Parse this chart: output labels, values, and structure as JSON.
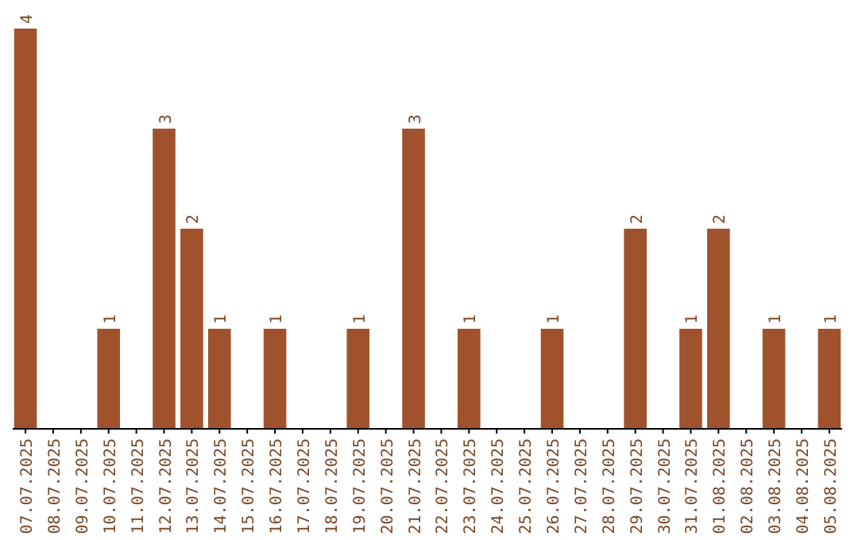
{
  "chart_data": {
    "type": "bar",
    "categories": [
      "07.07.2025",
      "08.07.2025",
      "09.07.2025",
      "10.07.2025",
      "11.07.2025",
      "12.07.2025",
      "13.07.2025",
      "14.07.2025",
      "15.07.2025",
      "16.07.2025",
      "17.07.2025",
      "18.07.2025",
      "19.07.2025",
      "20.07.2025",
      "21.07.2025",
      "22.07.2025",
      "23.07.2025",
      "24.07.2025",
      "25.07.2025",
      "26.07.2025",
      "27.07.2025",
      "28.07.2025",
      "29.07.2025",
      "30.07.2025",
      "31.07.2025",
      "01.08.2025",
      "02.08.2025",
      "03.08.2025",
      "04.08.2025",
      "05.08.2025"
    ],
    "values": [
      4,
      0,
      0,
      1,
      0,
      3,
      2,
      1,
      0,
      1,
      0,
      0,
      1,
      0,
      3,
      0,
      1,
      0,
      0,
      1,
      0,
      0,
      2,
      0,
      1,
      2,
      0,
      1,
      0,
      1
    ],
    "value_labels": [
      "4",
      null,
      null,
      "1",
      null,
      "3",
      "2",
      "1",
      null,
      "1",
      null,
      null,
      "1",
      null,
      "3",
      null,
      "1",
      null,
      null,
      "1",
      null,
      null,
      "2",
      null,
      "1",
      "2",
      null,
      "1",
      null,
      "1"
    ],
    "color": "#a0522d"
  }
}
